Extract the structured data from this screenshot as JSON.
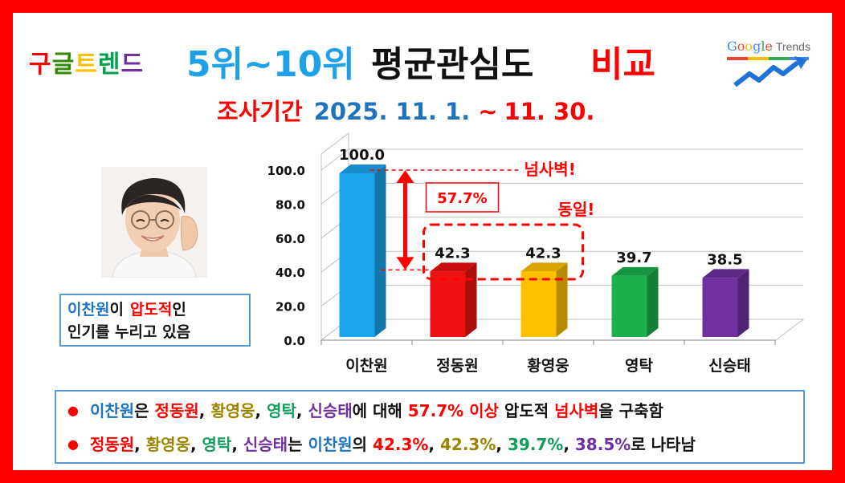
{
  "title": {
    "brand_chars": [
      {
        "ch": "구",
        "color": "#ff0000"
      },
      {
        "ch": "글",
        "color": "#2e8b00"
      },
      {
        "ch": "트",
        "color": "#ffc000"
      },
      {
        "ch": "렌",
        "color": "#00a050"
      },
      {
        "ch": "드",
        "color": "#7030a0"
      }
    ],
    "range": "5위~10위",
    "main": "평균관심도",
    "compare": "비교"
  },
  "subtitle": {
    "label": "조사기간",
    "start": "2025. 11. 1.",
    "tilde": "~",
    "end": "11. 30."
  },
  "logo": {
    "google_letters": [
      {
        "ch": "G",
        "color": "#4285f4"
      },
      {
        "ch": "o",
        "color": "#ea4335"
      },
      {
        "ch": "o",
        "color": "#fbbc05"
      },
      {
        "ch": "g",
        "color": "#4285f4"
      },
      {
        "ch": "l",
        "color": "#34a853"
      },
      {
        "ch": "e",
        "color": "#ea4335"
      }
    ],
    "trends": "Trends"
  },
  "caption": {
    "name": "이찬원",
    "particle": "이",
    "highlight": "압도적",
    "suffix": "인",
    "line2": "인기를 누리고 있음"
  },
  "annotations": {
    "gap_label": "넘사벽!",
    "gap_value": "57.7%",
    "same_label": "동일!"
  },
  "chart_data": {
    "type": "bar",
    "categories": [
      "이찬원",
      "정동원",
      "황영웅",
      "영탁",
      "신승태"
    ],
    "values": [
      100.0,
      42.3,
      42.3,
      39.7,
      38.5
    ],
    "value_labels": [
      "100.0",
      "42.3",
      "42.3",
      "39.7",
      "38.5"
    ],
    "colors": [
      "#1aa5ee",
      "#ee1111",
      "#ffc000",
      "#1bb04c",
      "#7030a0"
    ],
    "ylim": [
      0,
      100
    ],
    "yticks": [
      "0.0",
      "20.0",
      "40.0",
      "60.0",
      "80.0",
      "100.0"
    ],
    "ytick_values": [
      0,
      20,
      40,
      60,
      80,
      100
    ],
    "grid": true
  },
  "summary": {
    "line1": [
      {
        "text": "이찬원",
        "color": "#1e73be"
      },
      {
        "text": "은 ",
        "color": "#111111"
      },
      {
        "text": "정동원",
        "color": "#ff0000"
      },
      {
        "text": ", ",
        "color": "#111111"
      },
      {
        "text": "황영웅",
        "color": "#9c8400"
      },
      {
        "text": ", ",
        "color": "#111111"
      },
      {
        "text": "영탁",
        "color": "#0f9d58"
      },
      {
        "text": ", ",
        "color": "#111111"
      },
      {
        "text": "신승태",
        "color": "#7030a0"
      },
      {
        "text": "에 대해 ",
        "color": "#111111"
      },
      {
        "text": "57.7% 이상",
        "color": "#ff0000"
      },
      {
        "text": " 압도적 ",
        "color": "#111111"
      },
      {
        "text": "넘사벽",
        "color": "#ff0000"
      },
      {
        "text": "을 구축함",
        "color": "#111111"
      }
    ],
    "line2": [
      {
        "text": "정동원",
        "color": "#ff0000"
      },
      {
        "text": ", ",
        "color": "#111111"
      },
      {
        "text": "황영웅",
        "color": "#9c8400"
      },
      {
        "text": ", ",
        "color": "#111111"
      },
      {
        "text": "영탁",
        "color": "#0f9d58"
      },
      {
        "text": ", ",
        "color": "#111111"
      },
      {
        "text": "신승태",
        "color": "#7030a0"
      },
      {
        "text": "는 ",
        "color": "#111111"
      },
      {
        "text": "이찬원",
        "color": "#1e73be"
      },
      {
        "text": "의 ",
        "color": "#111111"
      },
      {
        "text": "42.3%",
        "color": "#ff0000"
      },
      {
        "text": ", ",
        "color": "#111111"
      },
      {
        "text": "42.3%",
        "color": "#9c8400"
      },
      {
        "text": ", ",
        "color": "#111111"
      },
      {
        "text": "39.7%",
        "color": "#0f9d58"
      },
      {
        "text": ", ",
        "color": "#111111"
      },
      {
        "text": "38.5%",
        "color": "#7030a0"
      },
      {
        "text": "로 나타남",
        "color": "#111111"
      }
    ]
  }
}
